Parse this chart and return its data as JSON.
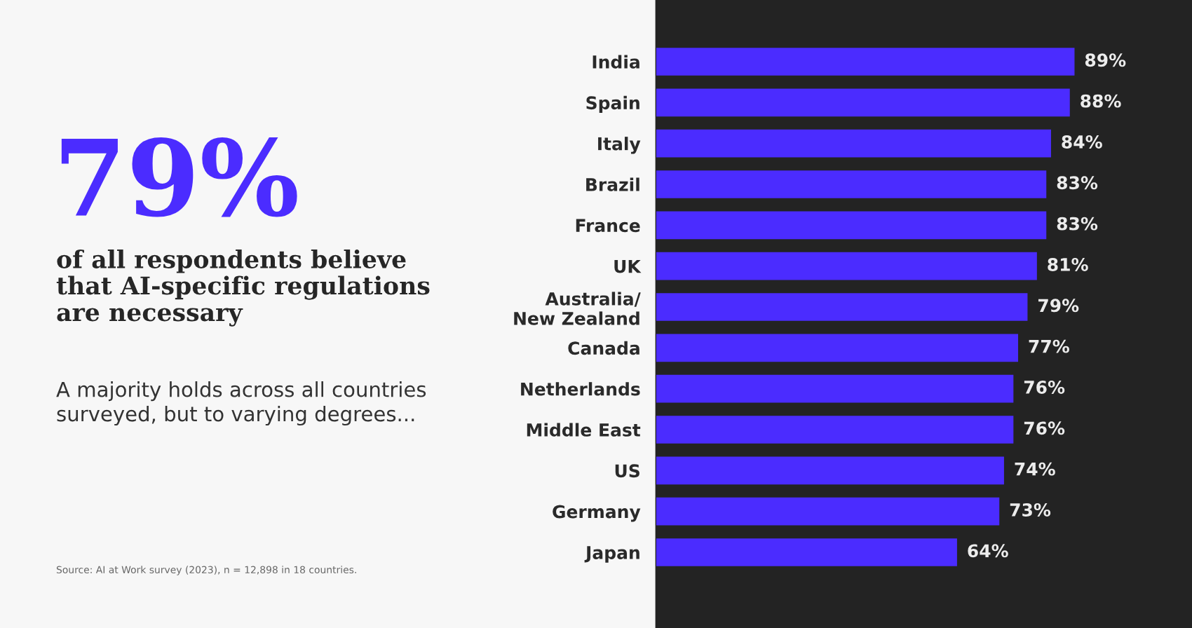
{
  "chart_data": {
    "type": "bar",
    "orientation": "horizontal",
    "title": "79%",
    "subtitle": "of all respondents believe\nthat AI-specific regulations\nare necessary",
    "annotations": [
      "A majority holds across all countries\nsurveyed, but to varying degrees...",
      "Source: AI at Work survey (2023), n = 12,898 in 18 countries."
    ],
    "categories": [
      "India",
      "Spain",
      "Italy",
      "Brazil",
      "France",
      "UK",
      "Australia/\nNew Zealand",
      "Canada",
      "Netherlands",
      "Middle East",
      "US",
      "Germany",
      "Japan"
    ],
    "values": [
      89,
      88,
      84,
      83,
      83,
      81,
      79,
      77,
      76,
      76,
      74,
      73,
      64
    ],
    "color": "#4b2cff",
    "value_labels": [
      "89%",
      "88%",
      "84%",
      "83%",
      "83%",
      "81%",
      "79%",
      "77%",
      "76%",
      "76%",
      "74%",
      "73%",
      "64%"
    ],
    "xlim": [
      0,
      114
    ],
    "tick_labels": "y"
  }
}
